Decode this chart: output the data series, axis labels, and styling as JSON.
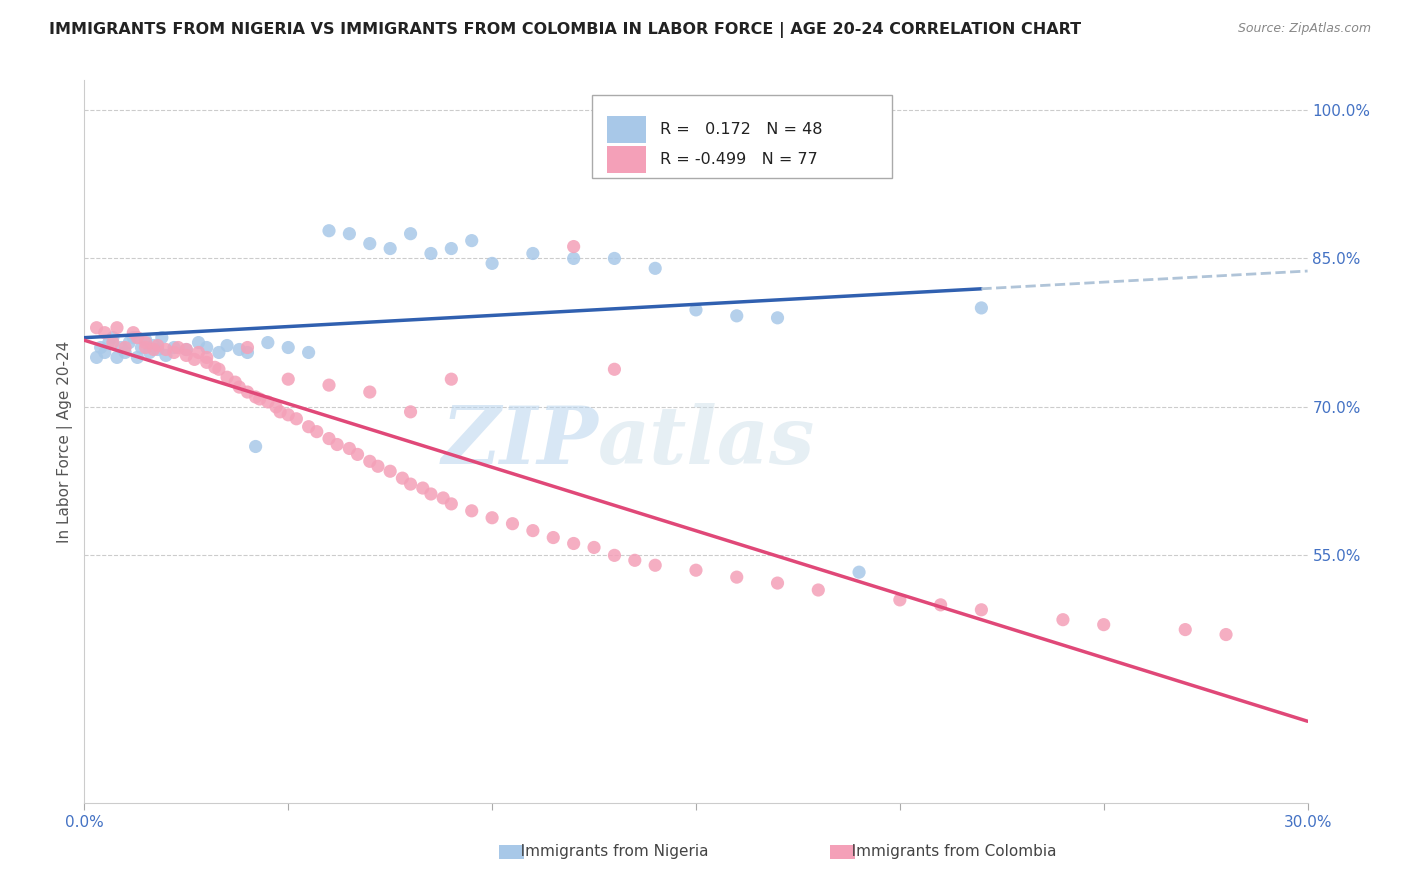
{
  "title": "IMMIGRANTS FROM NIGERIA VS IMMIGRANTS FROM COLOMBIA IN LABOR FORCE | AGE 20-24 CORRELATION CHART",
  "source": "Source: ZipAtlas.com",
  "ylabel": "In Labor Force | Age 20-24",
  "nigeria_R": 0.172,
  "nigeria_N": 48,
  "colombia_R": -0.499,
  "colombia_N": 77,
  "nigeria_color": "#a8c8e8",
  "colombia_color": "#f4a0b8",
  "nigeria_line_color": "#3060b0",
  "colombia_line_color": "#e04878",
  "trend_ext_color": "#b0c4d8",
  "xlim": [
    0.0,
    0.3
  ],
  "ylim": [
    0.3,
    1.03
  ],
  "right_yticks": [
    1.0,
    0.85,
    0.7,
    0.55
  ],
  "right_yticklabels": [
    "100.0%",
    "85.0%",
    "70.0%",
    "55.0%"
  ],
  "xtick_positions": [
    0.0,
    0.05,
    0.1,
    0.15,
    0.2,
    0.25,
    0.3
  ],
  "xtick_labels": [
    "0.0%",
    "",
    "",
    "",
    "",
    "",
    "30.0%"
  ],
  "watermark_zip": "ZIP",
  "watermark_atlas": "atlas",
  "title_fontsize": 11.5,
  "axis_label_fontsize": 11,
  "tick_fontsize": 11,
  "nigeria_x": [
    0.003,
    0.004,
    0.005,
    0.006,
    0.007,
    0.008,
    0.009,
    0.01,
    0.011,
    0.012,
    0.013,
    0.014,
    0.015,
    0.016,
    0.017,
    0.018,
    0.019,
    0.02,
    0.022,
    0.025,
    0.028,
    0.03,
    0.033,
    0.035,
    0.038,
    0.04,
    0.042,
    0.045,
    0.05,
    0.055,
    0.06,
    0.065,
    0.07,
    0.075,
    0.08,
    0.085,
    0.09,
    0.095,
    0.1,
    0.11,
    0.12,
    0.13,
    0.14,
    0.15,
    0.16,
    0.17,
    0.19,
    0.22
  ],
  "nigeria_y": [
    0.75,
    0.76,
    0.755,
    0.765,
    0.77,
    0.75,
    0.76,
    0.755,
    0.765,
    0.77,
    0.75,
    0.76,
    0.768,
    0.755,
    0.762,
    0.758,
    0.77,
    0.752,
    0.76,
    0.758,
    0.765,
    0.76,
    0.755,
    0.762,
    0.758,
    0.755,
    0.66,
    0.765,
    0.76,
    0.755,
    0.878,
    0.875,
    0.865,
    0.86,
    0.875,
    0.855,
    0.86,
    0.868,
    0.845,
    0.855,
    0.85,
    0.85,
    0.84,
    0.798,
    0.792,
    0.79,
    0.533,
    0.8
  ],
  "colombia_x": [
    0.003,
    0.005,
    0.007,
    0.008,
    0.01,
    0.012,
    0.013,
    0.015,
    0.017,
    0.018,
    0.02,
    0.022,
    0.023,
    0.025,
    0.027,
    0.028,
    0.03,
    0.032,
    0.033,
    0.035,
    0.037,
    0.038,
    0.04,
    0.042,
    0.043,
    0.045,
    0.047,
    0.048,
    0.05,
    0.052,
    0.055,
    0.057,
    0.06,
    0.062,
    0.065,
    0.067,
    0.07,
    0.072,
    0.075,
    0.078,
    0.08,
    0.083,
    0.085,
    0.088,
    0.09,
    0.095,
    0.1,
    0.105,
    0.11,
    0.115,
    0.12,
    0.125,
    0.13,
    0.135,
    0.14,
    0.15,
    0.16,
    0.17,
    0.18,
    0.2,
    0.21,
    0.22,
    0.24,
    0.25,
    0.27,
    0.28,
    0.12,
    0.13,
    0.09,
    0.05,
    0.06,
    0.07,
    0.08,
    0.04,
    0.03,
    0.025,
    0.015
  ],
  "colombia_y": [
    0.78,
    0.775,
    0.765,
    0.78,
    0.76,
    0.775,
    0.77,
    0.765,
    0.758,
    0.762,
    0.758,
    0.755,
    0.76,
    0.752,
    0.748,
    0.755,
    0.745,
    0.74,
    0.738,
    0.73,
    0.725,
    0.72,
    0.715,
    0.71,
    0.708,
    0.705,
    0.7,
    0.695,
    0.692,
    0.688,
    0.68,
    0.675,
    0.668,
    0.662,
    0.658,
    0.652,
    0.645,
    0.64,
    0.635,
    0.628,
    0.622,
    0.618,
    0.612,
    0.608,
    0.602,
    0.595,
    0.588,
    0.582,
    0.575,
    0.568,
    0.562,
    0.558,
    0.55,
    0.545,
    0.54,
    0.535,
    0.528,
    0.522,
    0.515,
    0.505,
    0.5,
    0.495,
    0.485,
    0.48,
    0.475,
    0.47,
    0.862,
    0.738,
    0.728,
    0.728,
    0.722,
    0.715,
    0.695,
    0.76,
    0.75,
    0.758,
    0.76
  ]
}
